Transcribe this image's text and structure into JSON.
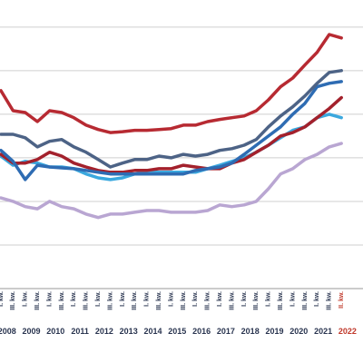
{
  "chart_data": {
    "type": "line",
    "categories": [
      "I. kw.",
      "III. kw.",
      "I. kw.",
      "III. kw.",
      "I. kw.",
      "III. kw.",
      "I. kw.",
      "III. kw.",
      "I. kw.",
      "III. kw.",
      "I. kw.",
      "III. kw.",
      "I. kw.",
      "III. kw.",
      "I. kw.",
      "III. kw.",
      "I. kw.",
      "III. kw.",
      "I. kw.",
      "III. kw.",
      "I. kw.",
      "III. kw.",
      "I. kw.",
      "III. kw.",
      "I. kw.",
      "III. kw.",
      "I. kw.",
      "III. kw.",
      "II. kw."
    ],
    "years": [
      "2008",
      "2009",
      "2010",
      "2011",
      "2012",
      "2013",
      "2014",
      "2015",
      "2016",
      "2017",
      "2018",
      "2019",
      "2020",
      "2021",
      "2022"
    ],
    "ylim": [
      0,
      6.6
    ],
    "grid": true,
    "series": [
      {
        "color": "#b72a32",
        "values": [
          4.54,
          4.08,
          4.04,
          3.83,
          4.08,
          4.04,
          3.92,
          3.75,
          3.65,
          3.58,
          3.6,
          3.63,
          3.63,
          3.65,
          3.67,
          3.75,
          3.75,
          3.83,
          3.88,
          3.92,
          3.96,
          4.08,
          4.33,
          4.63,
          4.83,
          5.13,
          5.42,
          5.83,
          5.75
        ]
      },
      {
        "color": "#4d6386",
        "values": [
          3.54,
          3.54,
          3.46,
          3.25,
          3.38,
          3.42,
          3.25,
          3.13,
          2.96,
          2.79,
          2.88,
          2.96,
          2.96,
          3.04,
          3.0,
          3.08,
          3.04,
          3.08,
          3.17,
          3.21,
          3.29,
          3.42,
          3.71,
          3.96,
          4.17,
          4.42,
          4.71,
          4.96,
          5.0
        ]
      },
      {
        "color": "#2e6cb3",
        "values": [
          3.17,
          2.92,
          2.5,
          2.83,
          2.79,
          2.77,
          2.75,
          2.71,
          2.67,
          2.63,
          2.63,
          2.63,
          2.63,
          2.63,
          2.63,
          2.63,
          2.71,
          2.75,
          2.79,
          2.88,
          3.08,
          3.29,
          3.5,
          3.71,
          4.0,
          4.25,
          4.63,
          4.71,
          4.75
        ]
      },
      {
        "color": "#a3212c",
        "values": [
          3.08,
          2.88,
          2.88,
          2.96,
          3.13,
          3.04,
          2.88,
          2.79,
          2.71,
          2.67,
          2.67,
          2.71,
          2.71,
          2.75,
          2.75,
          2.83,
          2.79,
          2.75,
          2.75,
          2.88,
          2.96,
          3.13,
          3.29,
          3.5,
          3.58,
          3.71,
          3.92,
          4.13,
          4.38
        ]
      },
      {
        "color": "#3ba8de",
        "values": [
          3.04,
          2.83,
          2.92,
          2.88,
          2.79,
          2.79,
          2.75,
          2.63,
          2.54,
          2.5,
          2.54,
          2.63,
          2.67,
          2.67,
          2.67,
          2.67,
          2.67,
          2.75,
          2.83,
          2.92,
          3.0,
          3.13,
          3.29,
          3.46,
          3.63,
          3.71,
          3.92,
          4.0,
          3.92
        ]
      },
      {
        "color": "#b9a6d2",
        "values": [
          2.08,
          2.0,
          1.88,
          1.83,
          2.0,
          1.88,
          1.83,
          1.71,
          1.63,
          1.71,
          1.71,
          1.75,
          1.79,
          1.79,
          1.75,
          1.75,
          1.75,
          1.79,
          1.92,
          1.88,
          1.92,
          2.0,
          2.29,
          2.63,
          2.75,
          2.96,
          3.08,
          3.25,
          3.33
        ]
      }
    ]
  }
}
